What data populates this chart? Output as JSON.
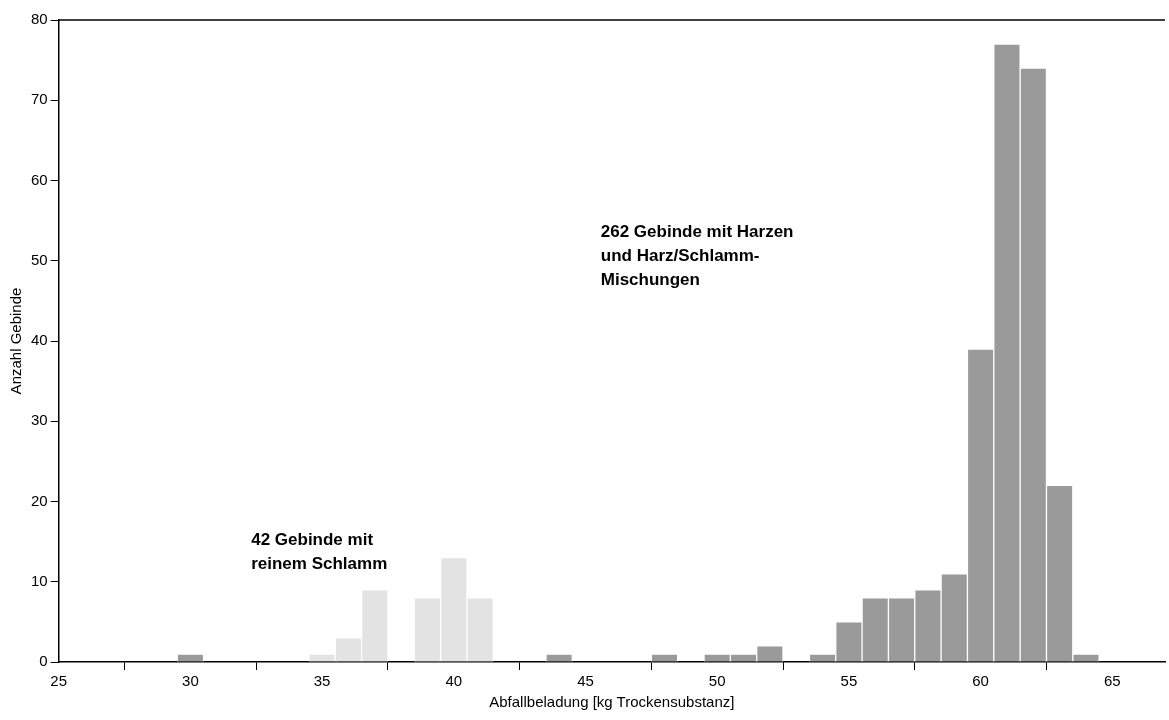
{
  "chart_data": {
    "type": "histogram",
    "xlabel": "Abfallbeladung [kg Trockensubstanz]",
    "ylabel": "Anzahl Gebinde",
    "bins": [
      29.5,
      30.5,
      31.5,
      32.5,
      33.5,
      34.5,
      35.5,
      36.5,
      37.5,
      38.5,
      39.5,
      40.5,
      41.5,
      42.5,
      43.5,
      44.5,
      45.5,
      46.5,
      47.5,
      48.5,
      49.5,
      50.5,
      51.5,
      52.5,
      53.5,
      54.5,
      55.5,
      56.5,
      57.5,
      58.5,
      59.5,
      60.5,
      61.5,
      62.5,
      63.5,
      64.5
    ],
    "series": [
      {
        "color": "#e3e3e3",
        "values": [
          null,
          null,
          null,
          null,
          null,
          1,
          3,
          9,
          null,
          8,
          13,
          8,
          null,
          null,
          null,
          null,
          null,
          null,
          null,
          null,
          null,
          null,
          null,
          null,
          null,
          null,
          null,
          null,
          null,
          null,
          null,
          null,
          null,
          null,
          null
        ]
      },
      {
        "color": "#9a9a9a",
        "values": [
          1,
          null,
          null,
          null,
          null,
          null,
          null,
          null,
          null,
          null,
          null,
          null,
          null,
          null,
          1,
          null,
          null,
          null,
          1,
          null,
          1,
          1,
          2,
          null,
          1,
          5,
          8,
          8,
          9,
          11,
          39,
          77,
          74,
          22,
          1
        ]
      }
    ],
    "xlim": [
      25,
      67
    ],
    "xticks": [
      25,
      30,
      35,
      40,
      45,
      50,
      55,
      60,
      65
    ],
    "ylim": [
      0,
      80
    ],
    "yticks": [
      0,
      10,
      20,
      30,
      40,
      50,
      60,
      70,
      80
    ],
    "annotations": [
      "42 Gebinde mit\nreinem Schlamm",
      "262 Gebinde mit Harzen\nund Harz/Schlamm-\nMischungen"
    ]
  }
}
